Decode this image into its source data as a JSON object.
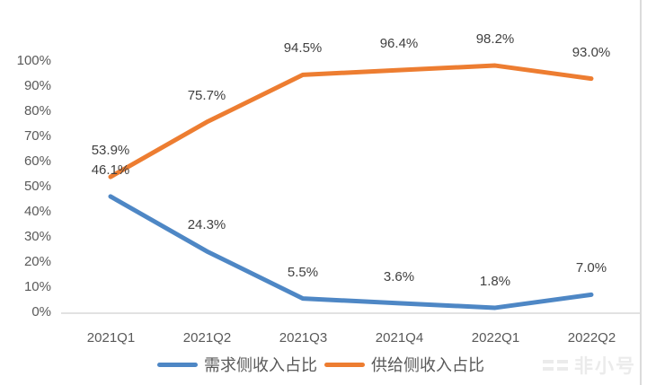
{
  "chart_data": {
    "type": "line",
    "categories": [
      "2021Q1",
      "2021Q2",
      "2021Q3",
      "2021Q4",
      "2022Q1",
      "2022Q2"
    ],
    "series": [
      {
        "name": "需求侧收入占比",
        "color": "#4E87C5",
        "values": [
          46.1,
          24.3,
          5.5,
          3.6,
          1.8,
          7.0
        ],
        "labels": [
          "46.1%",
          "24.3%",
          "5.5%",
          "3.6%",
          "1.8%",
          "7.0%"
        ]
      },
      {
        "name": "供给侧收入占比",
        "color": "#ED7D31",
        "values": [
          53.9,
          75.7,
          94.5,
          96.4,
          98.2,
          93.0
        ],
        "labels": [
          "53.9%",
          "75.7%",
          "94.5%",
          "96.4%",
          "98.2%",
          "93.0%"
        ]
      }
    ],
    "yticks": [
      "0%",
      "10%",
      "20%",
      "30%",
      "40%",
      "50%",
      "60%",
      "70%",
      "80%",
      "90%",
      "100%"
    ],
    "ylim": [
      0,
      100
    ],
    "grid": false,
    "legend_position": "bottom"
  },
  "watermark": "非小号",
  "colors": {
    "axis_line": "#d9d9d9",
    "tick_text": "#595959",
    "data_label_text": "#404040"
  }
}
